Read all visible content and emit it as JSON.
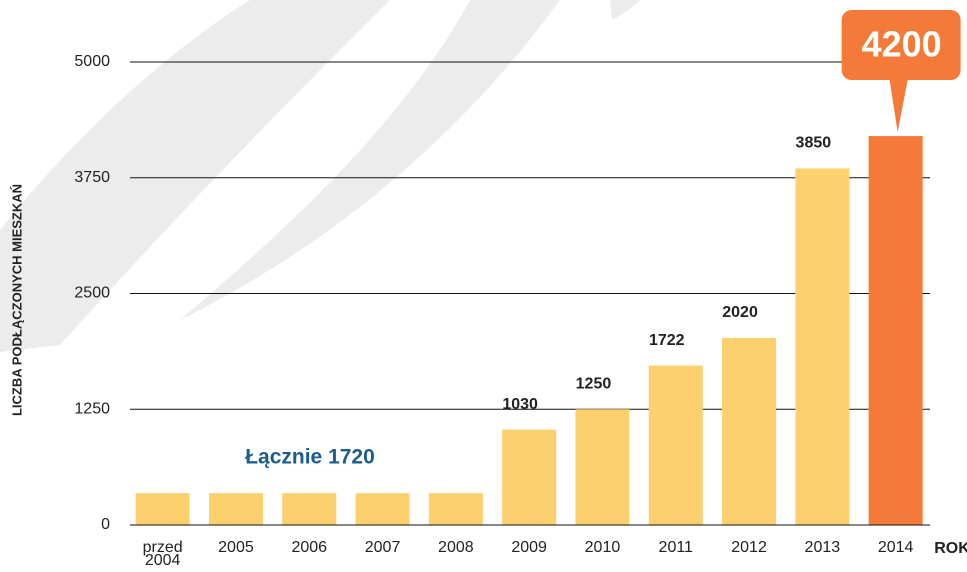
{
  "chart_data": {
    "type": "bar",
    "y_label": "LICZBA PODŁĄCZONYCH MIESZKAŃ",
    "x_label": "ROK",
    "annotation": "Łącznie 1720",
    "categories": [
      "przed 2004",
      "2005",
      "2006",
      "2007",
      "2008",
      "2009",
      "2010",
      "2011",
      "2012",
      "2013",
      "2014"
    ],
    "values": [
      344,
      344,
      344,
      344,
      344,
      1030,
      1250,
      1722,
      2020,
      3850,
      4200
    ],
    "value_labels": [
      null,
      null,
      null,
      null,
      null,
      "1030",
      "1250",
      "1722",
      "2020",
      "3850",
      "4200"
    ],
    "colors": [
      "#fdd06e",
      "#fdd06e",
      "#fdd06e",
      "#fdd06e",
      "#fdd06e",
      "#fdd06e",
      "#fdd06e",
      "#fdd06e",
      "#fdd06e",
      "#fdd06e",
      "#f47a3a"
    ],
    "ylim": [
      0,
      5000
    ],
    "yticks": [
      0,
      1250,
      2500,
      3750,
      5000
    ],
    "grid": true
  }
}
